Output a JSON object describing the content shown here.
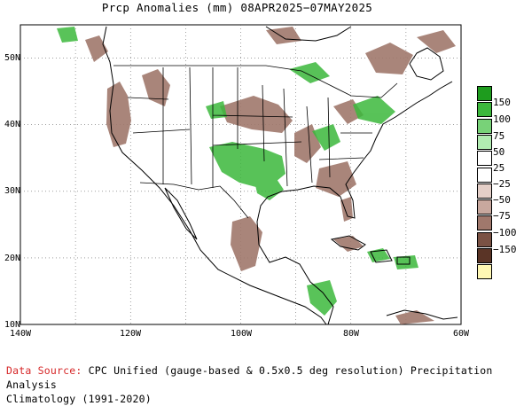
{
  "title": "Prcp Anomalies (mm) 08APR2025−07MAY2025",
  "map": {
    "lon_range": [
      -140,
      -60
    ],
    "lat_range": [
      10,
      55
    ],
    "gridlines": "dotted",
    "lat_ticks": [
      {
        "value": 10,
        "label": "10N"
      },
      {
        "value": 20,
        "label": "20N"
      },
      {
        "value": 30,
        "label": "30N"
      },
      {
        "value": 40,
        "label": "40N"
      },
      {
        "value": 50,
        "label": "50N"
      }
    ],
    "lon_ticks": [
      {
        "value": -140,
        "label": "140W"
      },
      {
        "value": -120,
        "label": "120W"
      },
      {
        "value": -100,
        "label": "100W"
      },
      {
        "value": -80,
        "label": "80W"
      },
      {
        "value": -60,
        "label": "60W"
      }
    ],
    "wet_anomaly_color": "#3cb83c",
    "dry_anomaly_color": "#a0786c"
  },
  "legend": {
    "swatches": [
      {
        "color": "#1e9c1e"
      },
      {
        "color": "#3cb83c"
      },
      {
        "color": "#78d278"
      },
      {
        "color": "#b2ecb2"
      },
      {
        "color": "#ffffff"
      },
      {
        "color": "#ffffff"
      },
      {
        "color": "#e4cfc8"
      },
      {
        "color": "#c8a89e"
      },
      {
        "color": "#a0786c"
      },
      {
        "color": "#7a5244"
      },
      {
        "color": "#5a3426"
      },
      {
        "color": "#fff8b4"
      }
    ],
    "labels": [
      "150",
      "100",
      "75",
      "50",
      "25",
      "−25",
      "−50",
      "−75",
      "−100",
      "−150"
    ]
  },
  "source": {
    "label": "Data Source:",
    "text": " CPC Unified (gauge-based & 0.5x0.5 deg resolution) Precipitation Analysis",
    "line2": "Climatology (1991-2020)"
  }
}
